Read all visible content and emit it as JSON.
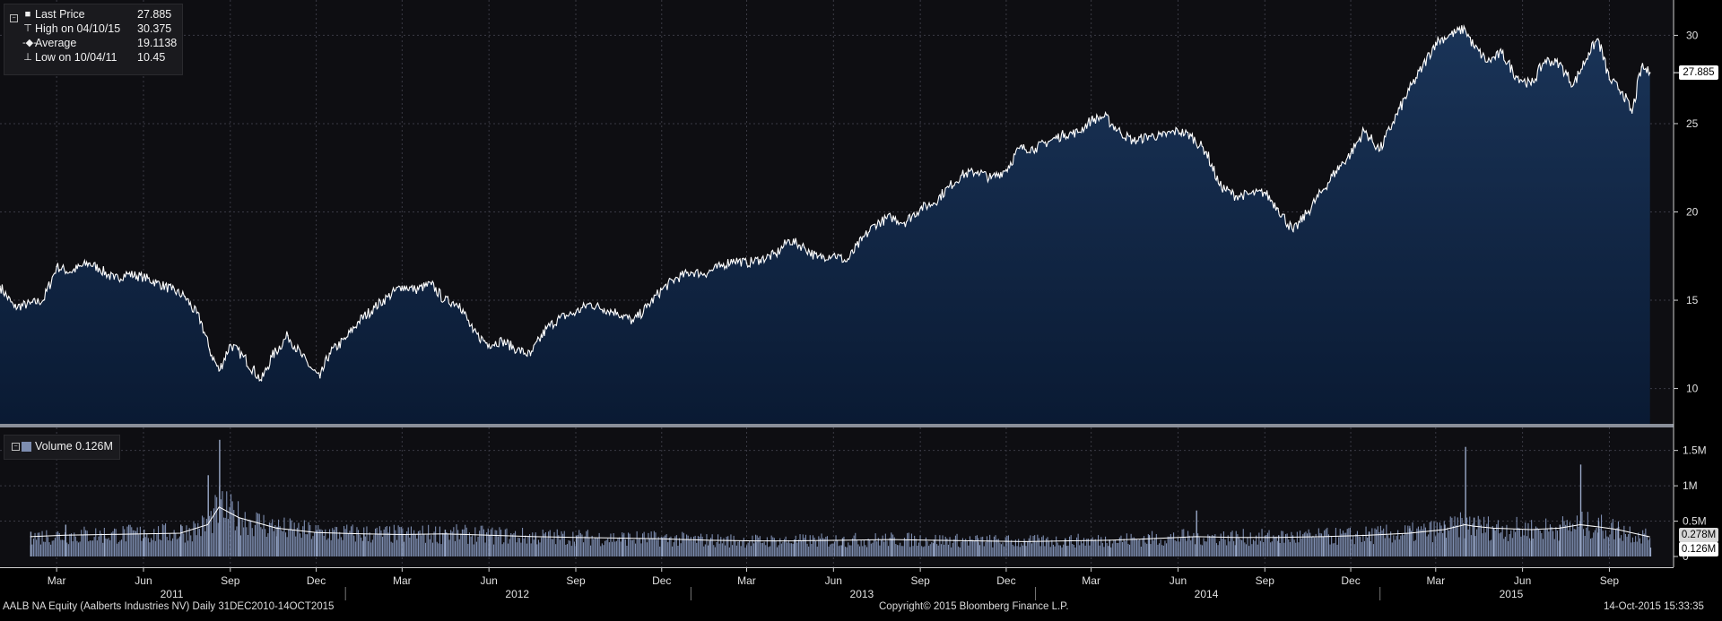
{
  "header": {
    "legend": [
      {
        "symbol": "last-price-icon",
        "label": "Last Price",
        "value": "27.885"
      },
      {
        "symbol": "high-marker-icon",
        "label": "High on 04/10/15",
        "value": "30.375"
      },
      {
        "symbol": "average-marker-icon",
        "label": "Average",
        "value": "19.1138"
      },
      {
        "symbol": "low-marker-icon",
        "label": "Low on 10/04/11",
        "value": "10.45"
      }
    ],
    "volume_legend": "Volume 0.126M",
    "last_price_badge": "27.885",
    "volume_badges": [
      "0.278M",
      "0.126M"
    ]
  },
  "footer": {
    "left": "AALB NA Equity (Aalberts Industries NV)  Daily 31DEC2010-14OCT2015",
    "center": "Copyright© 2015 Bloomberg Finance L.P.",
    "right": "14-Oct-2015 15:33:35"
  },
  "colors": {
    "background": "#000000",
    "panel": "#0e0e12",
    "area_top": "#1a3458",
    "area_bottom": "#0a1a33",
    "line": "#ffffff",
    "volume_bar": "#7d8db0",
    "grid": "#3a3a44"
  },
  "chart_data": [
    {
      "type": "area",
      "title": "",
      "xlabel": "",
      "ylabel": "",
      "x_range": [
        "2010-12-31",
        "2015-10-14"
      ],
      "ylim": [
        8,
        32
      ],
      "yticks": [
        10,
        15,
        20,
        25,
        30
      ],
      "grid": true,
      "legend_placement": "top-left",
      "x_tick_labels": [
        "Mar",
        "Jun",
        "Sep",
        "Dec",
        "Mar",
        "Jun",
        "Sep",
        "Dec",
        "Mar",
        "Jun",
        "Sep",
        "Dec",
        "Mar",
        "Jun",
        "Sep",
        "Dec",
        "Mar",
        "Jun",
        "Sep"
      ],
      "x_tick_dates": [
        "2011-03-01",
        "2011-06-01",
        "2011-09-01",
        "2011-12-01",
        "2012-03-01",
        "2012-06-01",
        "2012-09-01",
        "2012-12-01",
        "2013-03-01",
        "2013-06-01",
        "2013-09-01",
        "2013-12-01",
        "2014-03-01",
        "2014-06-01",
        "2014-09-01",
        "2014-12-01",
        "2015-03-01",
        "2015-06-01",
        "2015-09-01"
      ],
      "year_labels": [
        "2011",
        "2012",
        "2013",
        "2014",
        "2015"
      ],
      "series": [
        {
          "name": "Last Price",
          "x": [
            "2010-12-31",
            "2011-01-15",
            "2011-02-01",
            "2011-02-15",
            "2011-03-01",
            "2011-03-15",
            "2011-04-04",
            "2011-04-15",
            "2011-05-01",
            "2011-05-15",
            "2011-06-01",
            "2011-06-15",
            "2011-07-01",
            "2011-07-15",
            "2011-08-01",
            "2011-08-10",
            "2011-08-20",
            "2011-09-01",
            "2011-09-15",
            "2011-10-04",
            "2011-10-15",
            "2011-11-01",
            "2011-11-15",
            "2011-11-25",
            "2011-12-05",
            "2011-12-15",
            "2012-01-01",
            "2012-01-15",
            "2012-02-01",
            "2012-02-15",
            "2012-03-01",
            "2012-03-15",
            "2012-04-01",
            "2012-04-15",
            "2012-05-01",
            "2012-05-15",
            "2012-06-01",
            "2012-06-15",
            "2012-07-01",
            "2012-07-15",
            "2012-08-01",
            "2012-08-15",
            "2012-09-01",
            "2012-09-15",
            "2012-10-01",
            "2012-10-15",
            "2012-11-01",
            "2012-11-15",
            "2012-12-01",
            "2012-12-15",
            "2013-01-01",
            "2013-01-15",
            "2013-02-01",
            "2013-02-15",
            "2013-03-01",
            "2013-03-15",
            "2013-04-01",
            "2013-04-15",
            "2013-05-01",
            "2013-05-15",
            "2013-06-01",
            "2013-06-15",
            "2013-07-01",
            "2013-07-15",
            "2013-08-01",
            "2013-08-15",
            "2013-09-01",
            "2013-09-15",
            "2013-10-01",
            "2013-10-15",
            "2013-11-01",
            "2013-11-15",
            "2013-12-01",
            "2013-12-15",
            "2014-01-01",
            "2014-01-15",
            "2014-02-01",
            "2014-02-15",
            "2014-03-01",
            "2014-03-15",
            "2014-04-01",
            "2014-04-15",
            "2014-05-01",
            "2014-05-15",
            "2014-06-01",
            "2014-06-15",
            "2014-07-01",
            "2014-07-15",
            "2014-08-01",
            "2014-08-15",
            "2014-09-01",
            "2014-09-15",
            "2014-10-01",
            "2014-10-15",
            "2014-11-01",
            "2014-11-15",
            "2014-12-01",
            "2014-12-15",
            "2015-01-01",
            "2015-01-15",
            "2015-02-01",
            "2015-02-15",
            "2015-03-01",
            "2015-03-15",
            "2015-04-01",
            "2015-04-10",
            "2015-04-25",
            "2015-05-10",
            "2015-05-25",
            "2015-06-10",
            "2015-06-25",
            "2015-07-10",
            "2015-07-25",
            "2015-08-10",
            "2015-08-20",
            "2015-09-01",
            "2015-09-15",
            "2015-09-25",
            "2015-10-05",
            "2015-10-14"
          ],
          "y": [
            15.8,
            14.6,
            14.8,
            15.0,
            16.9,
            16.6,
            17.1,
            16.8,
            16.2,
            16.5,
            16.3,
            16.0,
            15.6,
            15.2,
            13.8,
            12.2,
            11.0,
            12.5,
            11.8,
            10.45,
            11.8,
            13.0,
            11.9,
            11.2,
            10.6,
            12.0,
            12.8,
            13.8,
            14.6,
            15.2,
            15.8,
            15.6,
            15.9,
            15.0,
            14.8,
            13.2,
            12.5,
            12.7,
            12.2,
            11.9,
            13.4,
            14.0,
            14.3,
            14.8,
            14.5,
            14.3,
            13.8,
            14.6,
            15.6,
            16.2,
            16.6,
            16.5,
            16.9,
            17.3,
            17.1,
            17.3,
            17.6,
            18.4,
            18.0,
            17.4,
            17.6,
            17.2,
            18.4,
            19.3,
            19.7,
            19.4,
            20.2,
            20.5,
            21.4,
            22.1,
            22.3,
            21.9,
            22.4,
            23.6,
            23.6,
            24.0,
            24.4,
            24.5,
            25.2,
            25.4,
            24.5,
            24.0,
            24.3,
            24.3,
            24.6,
            24.3,
            23.4,
            21.5,
            20.9,
            21.0,
            21.1,
            20.2,
            18.9,
            19.9,
            21.2,
            22.3,
            23.3,
            24.6,
            23.5,
            25.1,
            26.9,
            28.2,
            29.6,
            30.0,
            30.375,
            29.4,
            28.5,
            29.0,
            27.7,
            27.2,
            28.6,
            28.4,
            27.2,
            29.0,
            29.8,
            27.5,
            26.8,
            25.6,
            28.2,
            27.885
          ]
        },
        {
          "name": "Average",
          "values": [
            19.1138
          ]
        }
      ]
    },
    {
      "type": "bar",
      "title": "",
      "xlabel": "",
      "ylabel": "",
      "ylim": [
        0,
        1.8
      ],
      "yticks": [
        0,
        0.5,
        1,
        1.5
      ],
      "ytick_labels": [
        "0",
        "0.5M",
        "1M",
        "1.5M"
      ],
      "series": [
        {
          "name": "Volume",
          "unit": "M",
          "last_value": 0.126,
          "moving_average_last": 0.278,
          "x": [
            "2011-02-01",
            "2011-03-10",
            "2011-04-20",
            "2011-06-01",
            "2011-07-10",
            "2011-08-08",
            "2011-08-20",
            "2011-09-10",
            "2011-10-20",
            "2011-12-01",
            "2012-01-20",
            "2012-03-01",
            "2012-04-15",
            "2012-06-01",
            "2012-07-20",
            "2012-09-01",
            "2012-10-20",
            "2012-12-01",
            "2013-01-20",
            "2013-03-10",
            "2013-04-20",
            "2013-06-10",
            "2013-08-01",
            "2013-09-15",
            "2013-11-01",
            "2013-12-20",
            "2014-02-01",
            "2014-03-20",
            "2014-05-01",
            "2014-06-20",
            "2014-08-01",
            "2014-09-15",
            "2014-11-01",
            "2014-12-20",
            "2015-02-01",
            "2015-03-10",
            "2015-04-01",
            "2015-04-10",
            "2015-05-01",
            "2015-06-10",
            "2015-07-10",
            "2015-08-01",
            "2015-08-20",
            "2015-09-10",
            "2015-10-14"
          ],
          "values": [
            0.35,
            0.45,
            0.3,
            0.38,
            0.45,
            1.15,
            1.65,
            0.55,
            0.42,
            0.35,
            0.33,
            0.32,
            0.38,
            0.3,
            0.28,
            0.27,
            0.25,
            0.24,
            0.22,
            0.2,
            0.24,
            0.26,
            0.25,
            0.22,
            0.2,
            0.22,
            0.25,
            0.24,
            0.3,
            0.65,
            0.26,
            0.3,
            0.28,
            0.35,
            0.4,
            0.45,
            1.55,
            0.55,
            0.4,
            0.38,
            0.45,
            1.3,
            0.5,
            0.42,
            0.126
          ],
          "moving_average": [
            0.28,
            0.3,
            0.31,
            0.32,
            0.33,
            0.45,
            0.7,
            0.55,
            0.4,
            0.34,
            0.32,
            0.31,
            0.32,
            0.3,
            0.28,
            0.27,
            0.26,
            0.25,
            0.23,
            0.22,
            0.22,
            0.23,
            0.24,
            0.23,
            0.22,
            0.21,
            0.22,
            0.23,
            0.25,
            0.28,
            0.27,
            0.27,
            0.28,
            0.3,
            0.33,
            0.38,
            0.45,
            0.43,
            0.4,
            0.38,
            0.4,
            0.45,
            0.42,
            0.38,
            0.278
          ]
        }
      ]
    }
  ]
}
